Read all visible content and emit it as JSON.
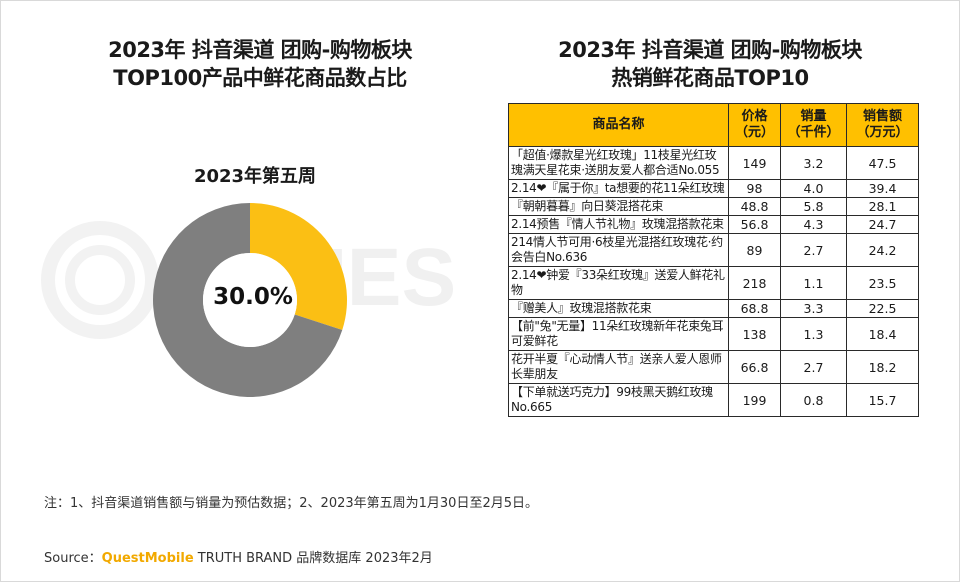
{
  "left_title": {
    "line1": "2023年 抖音渠道 团购-购物板块",
    "line2": "TOP100产品中鲜花商品数占比"
  },
  "right_title": {
    "line1": "2023年 抖音渠道 团购-购物板块",
    "line2": "热销鲜花商品TOP10"
  },
  "watermark": {
    "text": "QUES"
  },
  "chart_data": [
    {
      "type": "pie",
      "title": "2023年第五周",
      "slices": [
        {
          "label": "",
          "value": 30.0,
          "color": "#fbbf14"
        },
        {
          "label": "",
          "value": 70.0,
          "color": "#7f7f7f"
        }
      ],
      "center_label": "30.0%"
    },
    {
      "type": "table",
      "columns": [
        "商品名称",
        "价格\n（元）",
        "销量\n（千件）",
        "销售额\n（万元）"
      ],
      "rows": [
        [
          "「超值·爆款星光红玫瑰」11枝星光红玫瑰满天星花束·送朋友爱人都合适No.055",
          "149",
          "3.2",
          "47.5"
        ],
        [
          "2.14❤『属于你』ta想要的花11朵红玫瑰",
          "98",
          "4.0",
          "39.4"
        ],
        [
          "『朝朝暮暮』向日葵混搭花束",
          "48.8",
          "5.8",
          "28.1"
        ],
        [
          "2.14预售『情人节礼物』玫瑰混搭款花束",
          "56.8",
          "4.3",
          "24.7"
        ],
        [
          "214情人节可用·6枝星光混搭红玫瑰花·约会告白No.636",
          "89",
          "2.7",
          "24.2"
        ],
        [
          "2.14❤钟爱『33朵红玫瑰』送爱人鲜花礼物",
          "218",
          "1.1",
          "23.5"
        ],
        [
          "『赠美人』玫瑰混搭款花束",
          "68.8",
          "3.3",
          "22.5"
        ],
        [
          "【前\"兔\"无量】11朵红玫瑰新年花束兔耳可爱鲜花",
          "138",
          "1.3",
          "18.4"
        ],
        [
          "花开半夏『心动情人节』送亲人爱人恩师长辈朋友",
          "66.8",
          "2.7",
          "18.2"
        ],
        [
          "【下单就送巧克力】99枝黑天鹅红玫瑰No.665",
          "199",
          "0.8",
          "15.7"
        ]
      ]
    }
  ],
  "colors": {
    "accent": "#ffc000",
    "donut_highlight": "#fbbf14",
    "donut_rest": "#7f7f7f",
    "brand": "#f2a900"
  },
  "note": "注：1、抖音渠道销售额与销量为预估数据；2、2023年第五周为1月30日至2月5日。",
  "source": {
    "prefix": "Source：",
    "brand": "QuestMobile",
    "suffix": " TRUTH BRAND 品牌数据库 2023年2月"
  }
}
